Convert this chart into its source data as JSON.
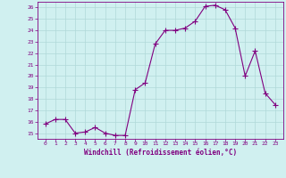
{
  "x": [
    0,
    1,
    2,
    3,
    4,
    5,
    6,
    7,
    8,
    9,
    10,
    11,
    12,
    13,
    14,
    15,
    16,
    17,
    18,
    19,
    20,
    21,
    22,
    23
  ],
  "y": [
    15.8,
    16.2,
    16.2,
    15.0,
    15.1,
    15.5,
    15.0,
    14.8,
    14.8,
    18.8,
    19.4,
    22.8,
    24.0,
    24.0,
    24.2,
    24.8,
    26.1,
    26.2,
    25.8,
    24.2,
    20.0,
    22.2,
    18.5,
    17.5
  ],
  "line_color": "#800080",
  "marker": "+",
  "bg_color": "#d0f0f0",
  "grid_color": "#b0d8d8",
  "xlabel": "Windchill (Refroidissement éolien,°C)",
  "xlabel_color": "#800080",
  "ylim_min": 14.5,
  "ylim_max": 26.5,
  "yticks": [
    15,
    16,
    17,
    18,
    19,
    20,
    21,
    22,
    23,
    24,
    25,
    26
  ],
  "xticks": [
    0,
    1,
    2,
    3,
    4,
    5,
    6,
    7,
    8,
    9,
    10,
    11,
    12,
    13,
    14,
    15,
    16,
    17,
    18,
    19,
    20,
    21,
    22,
    23
  ],
  "tick_color": "#800080",
  "axis_color": "#800080",
  "tick_fontsize": 4.5,
  "xlabel_fontsize": 5.5
}
